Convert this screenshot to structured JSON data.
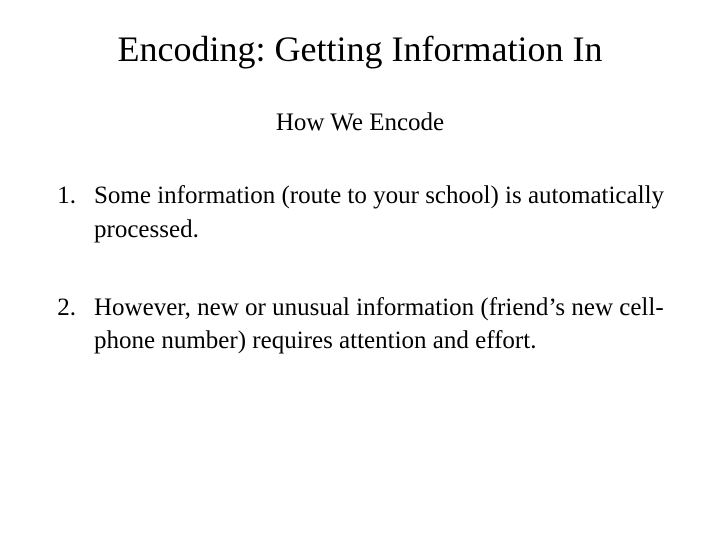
{
  "slide": {
    "title": "Encoding: Getting Information In",
    "subtitle": "How We Encode",
    "title_fontsize": 36,
    "subtitle_fontsize": 25,
    "body_fontsize": 25,
    "font_family": "Palatino Linotype, Book Antiqua, Palatino, Georgia, serif",
    "text_color": "#000000",
    "background_color": "#ffffff",
    "items": [
      {
        "number": "1.",
        "text": "Some information (route to your school) is automatically processed."
      },
      {
        "number": "2.",
        "text": "However, new or unusual information (friend’s new cell-phone number) requires attention and effort."
      }
    ]
  }
}
